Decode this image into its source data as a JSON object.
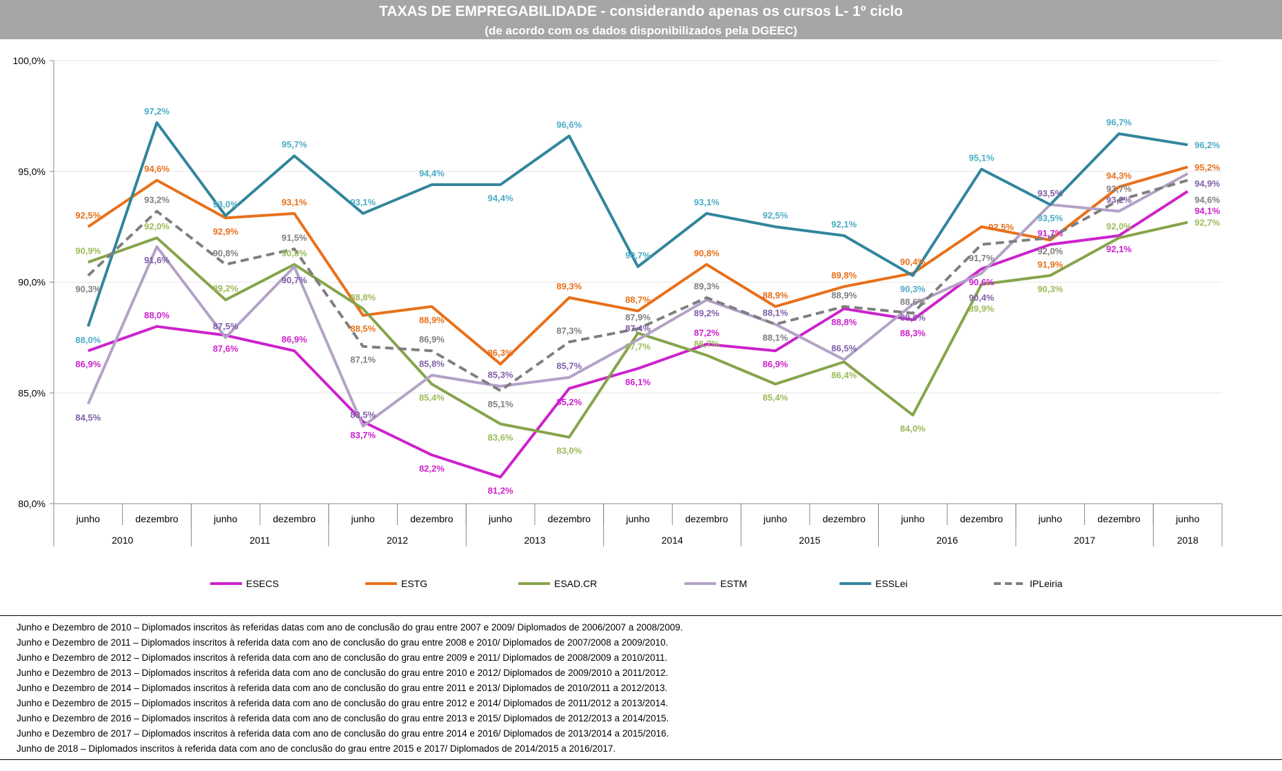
{
  "chart_data": {
    "type": "line",
    "title": "TAXAS DE EMPREGABILIDADE - considerando apenas os cursos L- 1º ciclo",
    "subtitle": "(de acordo com os dados disponibilizados pela DGEEC)",
    "categories": [
      "junho",
      "dezembro",
      "junho",
      "dezembro",
      "junho",
      "dezembro",
      "junho",
      "dezembro",
      "junho",
      "dezembro",
      "junho",
      "dezembro",
      "junho",
      "dezembro",
      "junho",
      "dezembro",
      "junho"
    ],
    "years": [
      {
        "label": "2010",
        "span": 2
      },
      {
        "label": "2011",
        "span": 2
      },
      {
        "label": "2012",
        "span": 2
      },
      {
        "label": "2013",
        "span": 2
      },
      {
        "label": "2014",
        "span": 2
      },
      {
        "label": "2015",
        "span": 2
      },
      {
        "label": "2016",
        "span": 2
      },
      {
        "label": "2017",
        "span": 2
      },
      {
        "label": "2018",
        "span": 1
      }
    ],
    "ylim": [
      80,
      100
    ],
    "yticks": [
      "80,0%",
      "85,0%",
      "90,0%",
      "95,0%",
      "100,0%"
    ],
    "grid": true,
    "legend": "bottom",
    "series": [
      {
        "name": "ESECS",
        "color": "#cc22cc",
        "label_color": "#cc22cc",
        "dashed": false,
        "values": [
          86.9,
          88.0,
          87.6,
          86.9,
          83.7,
          82.2,
          81.2,
          85.2,
          86.1,
          87.2,
          86.9,
          88.8,
          88.3,
          90.6,
          91.7,
          92.1,
          94.1
        ]
      },
      {
        "name": "ESTG",
        "color": "#e8701a",
        "label_color": "#e8701a",
        "dashed": false,
        "values": [
          92.5,
          94.6,
          92.9,
          93.1,
          88.5,
          88.9,
          86.3,
          89.3,
          88.7,
          90.8,
          88.9,
          89.8,
          90.4,
          92.5,
          91.9,
          94.3,
          95.2
        ]
      },
      {
        "name": "ESAD.CR",
        "color": "#86a44a",
        "label_color": "#9bbb59",
        "dashed": false,
        "values": [
          90.9,
          92.0,
          89.2,
          90.8,
          88.8,
          85.4,
          83.6,
          83.0,
          87.7,
          86.7,
          85.4,
          86.4,
          84.0,
          89.9,
          90.3,
          92.0,
          92.7
        ]
      },
      {
        "name": "ESTM",
        "color": "#b3a2c7",
        "label_color": "#7f5fa8",
        "dashed": false,
        "values": [
          84.5,
          91.6,
          87.5,
          90.7,
          83.5,
          85.8,
          85.3,
          85.7,
          87.4,
          89.2,
          88.1,
          86.5,
          89.0,
          90.4,
          93.5,
          93.2,
          94.9
        ]
      },
      {
        "name": "ESSLei",
        "color": "#31859c",
        "label_color": "#4bacc6",
        "dashed": false,
        "values": [
          88.0,
          97.2,
          93.0,
          95.7,
          93.1,
          94.4,
          94.4,
          96.6,
          90.7,
          93.1,
          92.5,
          92.1,
          90.3,
          95.1,
          93.5,
          96.7,
          96.2
        ]
      },
      {
        "name": "IPLeiria",
        "color": "#7f7f7f",
        "label_color": "#7f7f7f",
        "dashed": true,
        "values": [
          90.3,
          93.2,
          90.8,
          91.5,
          87.1,
          86.9,
          85.1,
          87.3,
          87.9,
          89.3,
          88.1,
          88.9,
          88.6,
          91.7,
          92.0,
          93.7,
          94.6
        ]
      }
    ]
  },
  "notes": [
    "Junho e Dezembro de 2010 – Diplomados inscritos às referidas datas com ano de conclusão do grau entre 2007 e 2009/ Diplomados de 2006/2007 a 2008/2009.",
    "Junho e Dezembro de 2011 – Diplomados inscritos à referida data com ano de conclusão do grau entre 2008 e 2010/ Diplomados de 2007/2008 a 2009/2010.",
    "Junho e Dezembro de 2012 – Diplomados inscritos à referida data com ano de conclusão do grau entre 2009 e 2011/ Diplomados de 2008/2009 a 2010/2011.",
    "Junho e Dezembro de 2013 – Diplomados inscritos à referida data com ano de conclusão do grau entre 2010 e 2012/ Diplomados de 2009/2010 a 2011/2012.",
    "Junho e Dezembro de 2014 – Diplomados inscritos à referida data com ano de conclusão do grau entre 2011 e 2013/ Diplomados de 2010/2011 a 2012/2013.",
    "Junho e Dezembro de 2015 – Diplomados inscritos à referida data com ano de conclusão do grau entre 2012 e 2014/ Diplomados de 2011/2012 a 2013/2014.",
    "Junho e Dezembro de 2016 – Diplomados inscritos à referida data com ano de conclusão do grau entre 2013 e 2015/ Diplomados de 2012/2013 a 2014/2015.",
    "Junho e Dezembro de 2017 – Diplomados inscritos à referida data com ano de conclusão do grau entre 2014 e 2016/ Diplomados de 2013/2014 a 2015/2016.",
    "Junho de 2018 – Diplomados inscritos à referida data com ano de conclusão do grau entre 2015 e 2017/ Diplomados de 2014/2015 a 2016/2017."
  ]
}
